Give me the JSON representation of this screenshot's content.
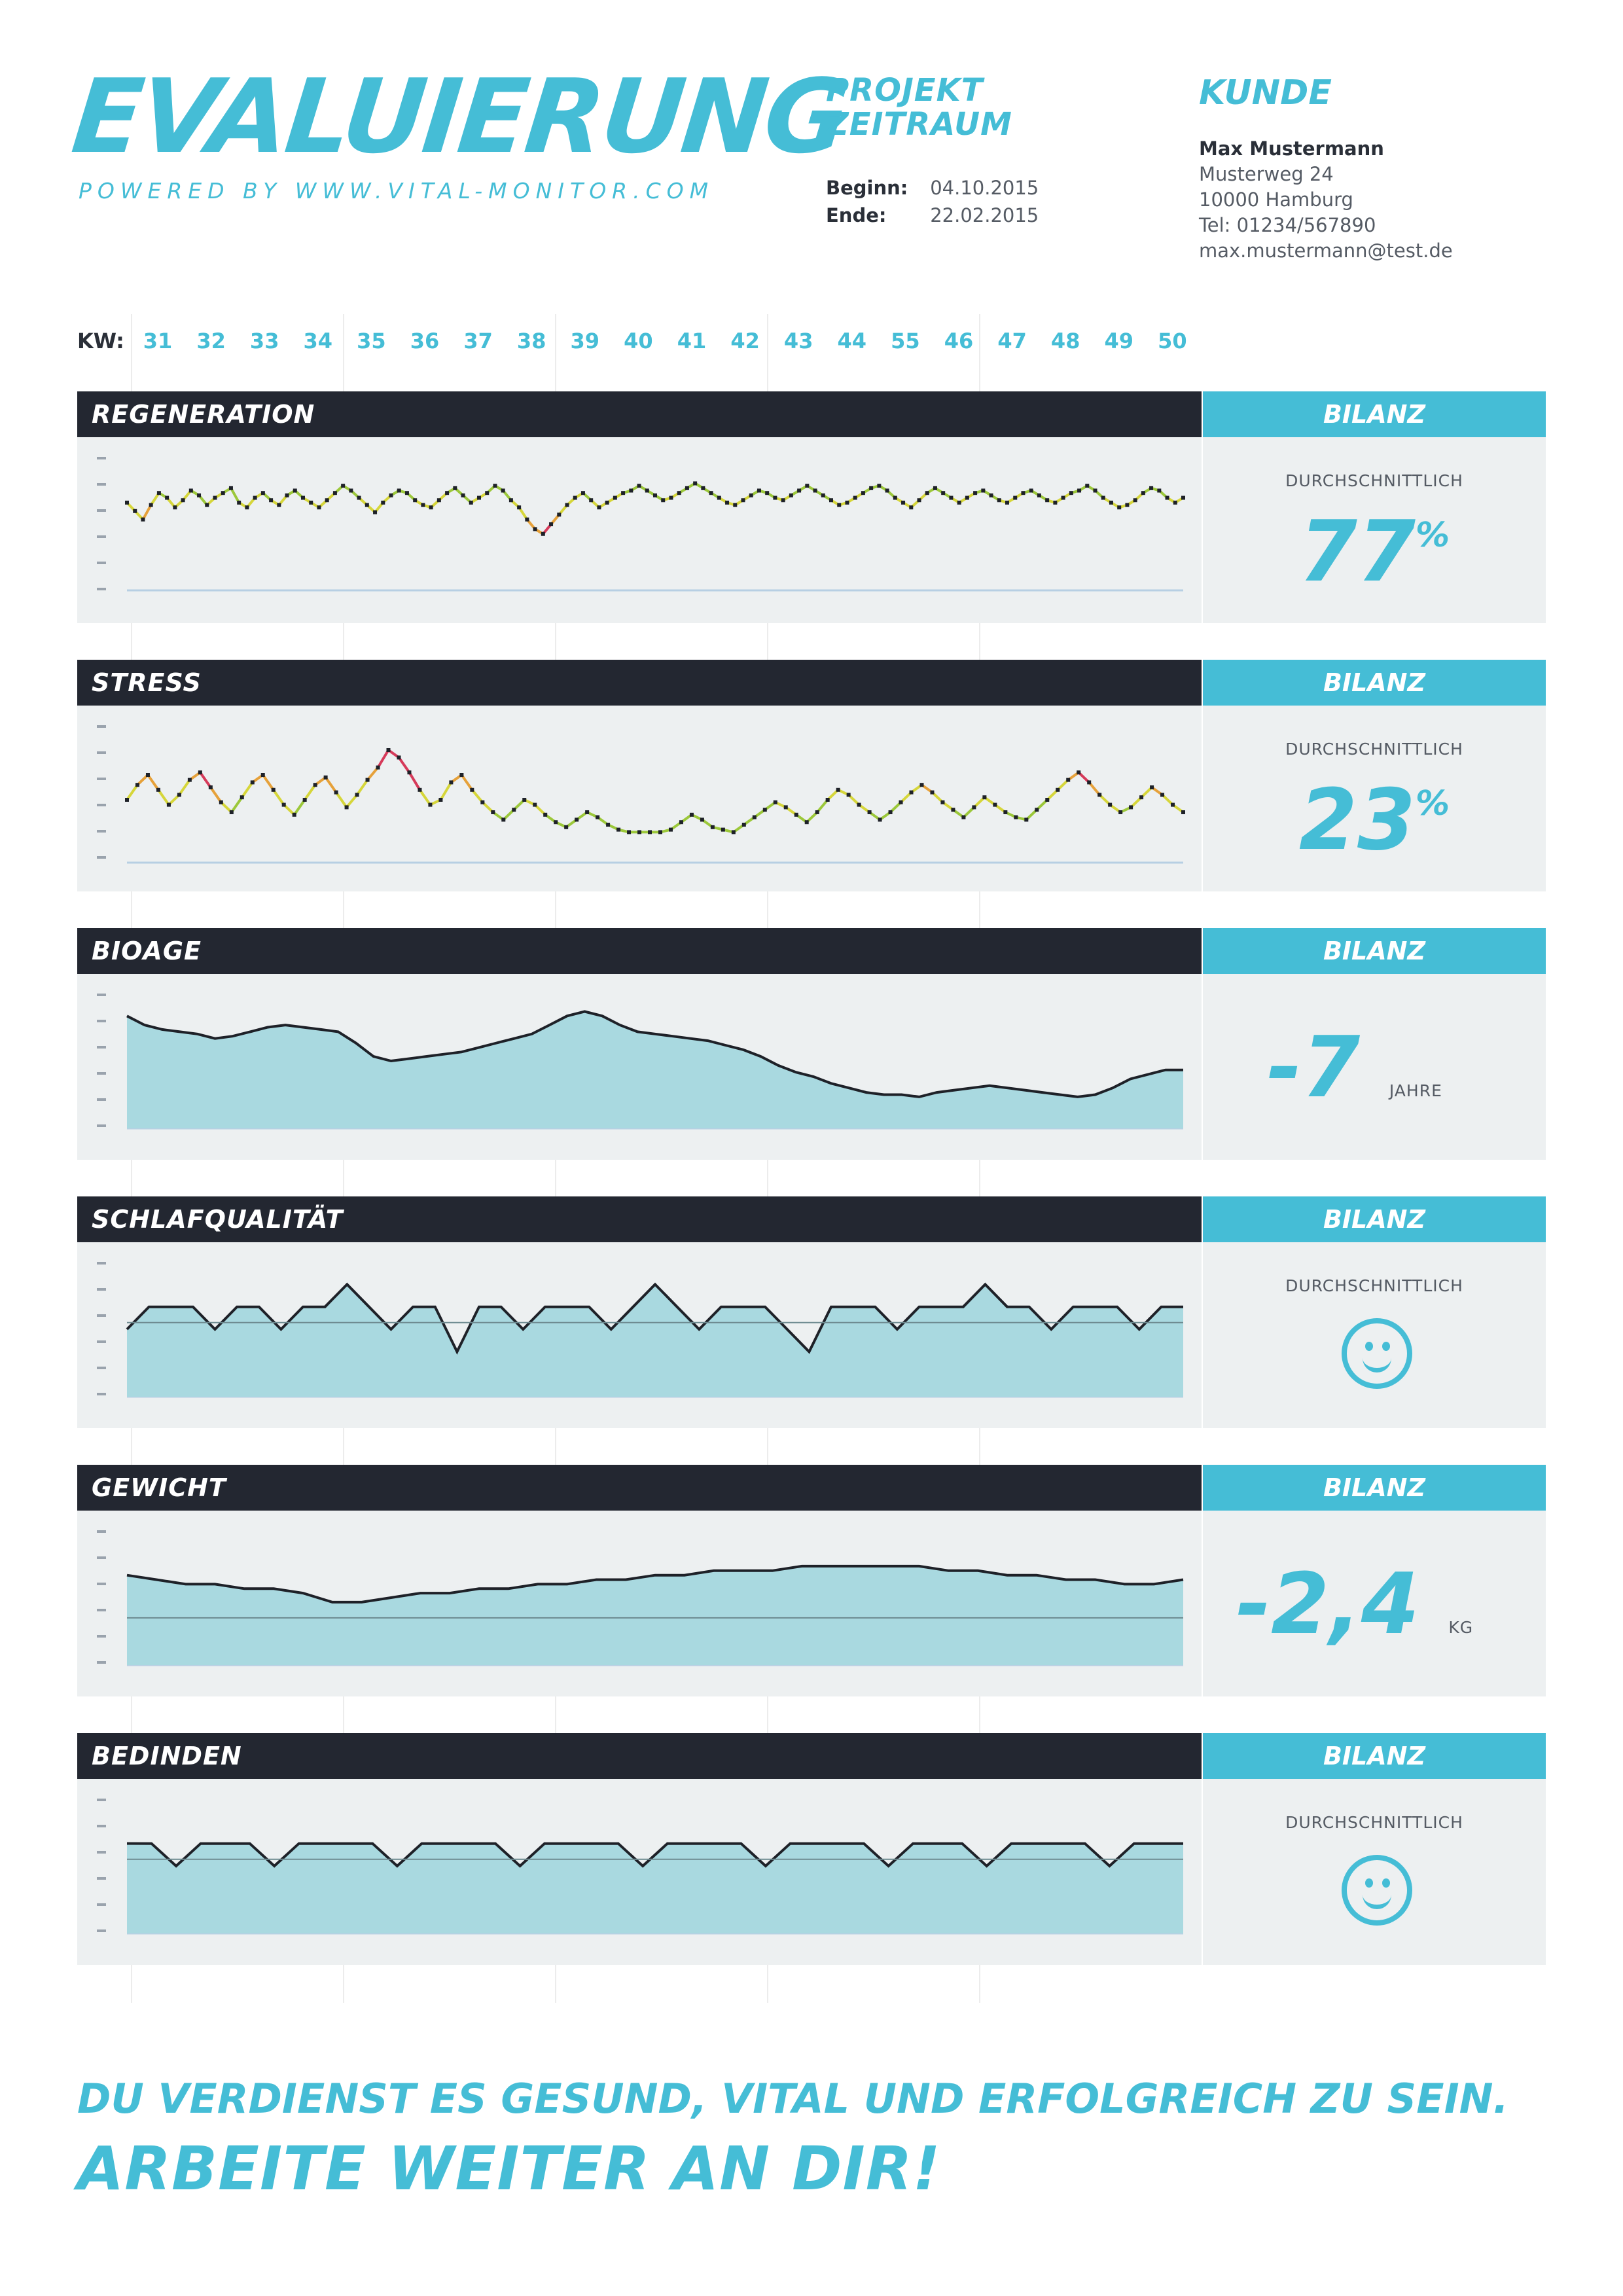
{
  "header": {
    "brand": "EVALUIERUNG",
    "powered": "POWERED BY WWW.VITAL-MONITOR.COM",
    "project_line1": "PROJEKT",
    "project_line2": "ZEITRAUM",
    "begin_label": "Beginn:",
    "begin_value": "04.10.2015",
    "end_label": "Ende:",
    "end_value": "22.02.2015",
    "kunde_title": "KUNDE",
    "customer": {
      "name": "Max Mustermann",
      "street": "Musterweg 24",
      "city": "10000 Hamburg",
      "tel": "Tel: 01234/567890",
      "email": "max.mustermann@test.de"
    }
  },
  "kw": {
    "label": "KW:",
    "weeks": [
      "31",
      "32",
      "33",
      "34",
      "35",
      "36",
      "37",
      "38",
      "39",
      "40",
      "41",
      "42",
      "43",
      "44",
      "55",
      "46",
      "47",
      "48",
      "49",
      "50"
    ]
  },
  "sections": [
    {
      "title": "REGENERATION",
      "bilanz": "BILANZ",
      "label": "DURCHSCHNITTLICH",
      "value": "77",
      "unit": "%"
    },
    {
      "title": "STRESS",
      "bilanz": "BILANZ",
      "label": "DURCHSCHNITTLICH",
      "value": "23",
      "unit": "%"
    },
    {
      "title": "BIOAGE",
      "bilanz": "BILANZ",
      "label": "",
      "value": "-7",
      "unit": "JAHRE"
    },
    {
      "title": "SCHLAFQUALITÄT",
      "bilanz": "BILANZ",
      "label": "DURCHSCHNITTLICH",
      "icon": "smiley-icon"
    },
    {
      "title": "GEWICHT",
      "bilanz": "BILANZ",
      "label": "",
      "value": "-2,4",
      "unit": "KG"
    },
    {
      "title": "BEDINDEN",
      "bilanz": "BILANZ",
      "label": "DURCHSCHNITTLICH",
      "icon": "smiley-icon"
    }
  ],
  "slogan": {
    "line1": "DU VERDIENST ES GESUND, VITAL UND ERFOLGREICH ZU SEIN.",
    "line2": "ARBEITE WEITER AN DIR!"
  },
  "colors": {
    "accent": "#45bdd6",
    "dark": "#232731",
    "panel": "#edf0f1",
    "area": "#a9d9e0"
  },
  "chart_data": [
    {
      "type": "bar",
      "name": "Regeneration",
      "style": "colored-line",
      "values": [
        62,
        55,
        48,
        60,
        70,
        66,
        58,
        64,
        72,
        68,
        60,
        66,
        70,
        74,
        62,
        58,
        66,
        70,
        64,
        60,
        68,
        72,
        66,
        62,
        58,
        64,
        70,
        76,
        72,
        66,
        60,
        54,
        62,
        68,
        72,
        70,
        64,
        60,
        58,
        64,
        70,
        74,
        68,
        62,
        66,
        70,
        76,
        72,
        64,
        58,
        48,
        40,
        36,
        44,
        52,
        60,
        66,
        70,
        64,
        58,
        62,
        66,
        70,
        72,
        76,
        72,
        68,
        64,
        66,
        70,
        74,
        78,
        74,
        70,
        66,
        62,
        60,
        64,
        68,
        72,
        70,
        66,
        64,
        68,
        72,
        76,
        72,
        68,
        64,
        60,
        62,
        66,
        70,
        74,
        76,
        72,
        66,
        62,
        58,
        64,
        70,
        74,
        70,
        66,
        62,
        66,
        70,
        72,
        68,
        64,
        62,
        66,
        70,
        72,
        68,
        64,
        62,
        66,
        70,
        72,
        76,
        72,
        66,
        62,
        58,
        60,
        64,
        70,
        74,
        72,
        66,
        62,
        66
      ]
    },
    {
      "type": "bar",
      "name": "Stress",
      "style": "colored-line",
      "values": [
        40,
        52,
        60,
        48,
        36,
        44,
        56,
        62,
        50,
        38,
        30,
        42,
        54,
        60,
        48,
        36,
        28,
        40,
        52,
        58,
        46,
        34,
        44,
        56,
        66,
        80,
        74,
        62,
        48,
        36,
        40,
        54,
        60,
        48,
        38,
        30,
        24,
        32,
        40,
        36,
        28,
        22,
        18,
        24,
        30,
        26,
        20,
        16,
        14,
        14,
        14,
        14,
        16,
        22,
        28,
        24,
        18,
        16,
        14,
        20,
        26,
        32,
        38,
        34,
        28,
        22,
        30,
        40,
        48,
        44,
        36,
        30,
        24,
        30,
        38,
        46,
        52,
        46,
        38,
        32,
        26,
        34,
        42,
        36,
        30,
        26,
        24,
        32,
        40,
        48,
        56,
        62,
        54,
        44,
        36,
        30,
        34,
        42,
        50,
        44,
        36,
        30
      ]
    },
    {
      "type": "area",
      "name": "Bioage",
      "values": [
        70,
        66,
        64,
        63,
        62,
        60,
        61,
        63,
        65,
        66,
        65,
        64,
        63,
        58,
        52,
        50,
        51,
        52,
        53,
        54,
        56,
        58,
        60,
        62,
        66,
        70,
        72,
        70,
        66,
        63,
        62,
        61,
        60,
        59,
        57,
        55,
        52,
        48,
        45,
        43,
        40,
        38,
        36,
        35,
        35,
        34,
        36,
        37,
        38,
        39,
        38,
        37,
        36,
        35,
        34,
        35,
        38,
        42,
        44,
        46,
        46
      ]
    },
    {
      "type": "area",
      "name": "Schlafqualität",
      "values": [
        3,
        4,
        4,
        4,
        3,
        4,
        4,
        3,
        4,
        4,
        5,
        4,
        3,
        4,
        4,
        2,
        4,
        4,
        3,
        4,
        4,
        4,
        3,
        4,
        5,
        4,
        3,
        4,
        4,
        4,
        3,
        2,
        4,
        4,
        4,
        3,
        4,
        4,
        4,
        5,
        4,
        4,
        3,
        4,
        4,
        4,
        3,
        4,
        4
      ]
    },
    {
      "type": "area",
      "name": "Gewicht",
      "values": [
        80,
        79,
        78,
        78,
        77,
        77,
        76,
        74,
        74,
        75,
        76,
        76,
        77,
        77,
        78,
        78,
        79,
        79,
        80,
        80,
        81,
        81,
        81,
        82,
        82,
        82,
        82,
        82,
        81,
        81,
        80,
        80,
        79,
        79,
        78,
        78,
        79
      ]
    },
    {
      "type": "area",
      "name": "Bedinden",
      "values": [
        4,
        4,
        3,
        4,
        4,
        4,
        3,
        4,
        4,
        4,
        4,
        3,
        4,
        4,
        4,
        4,
        3,
        4,
        4,
        4,
        4,
        3,
        4,
        4,
        4,
        4,
        3,
        4,
        4,
        4,
        4,
        3,
        4,
        4,
        4,
        3,
        4,
        4,
        4,
        4,
        3,
        4,
        4,
        4
      ]
    }
  ]
}
